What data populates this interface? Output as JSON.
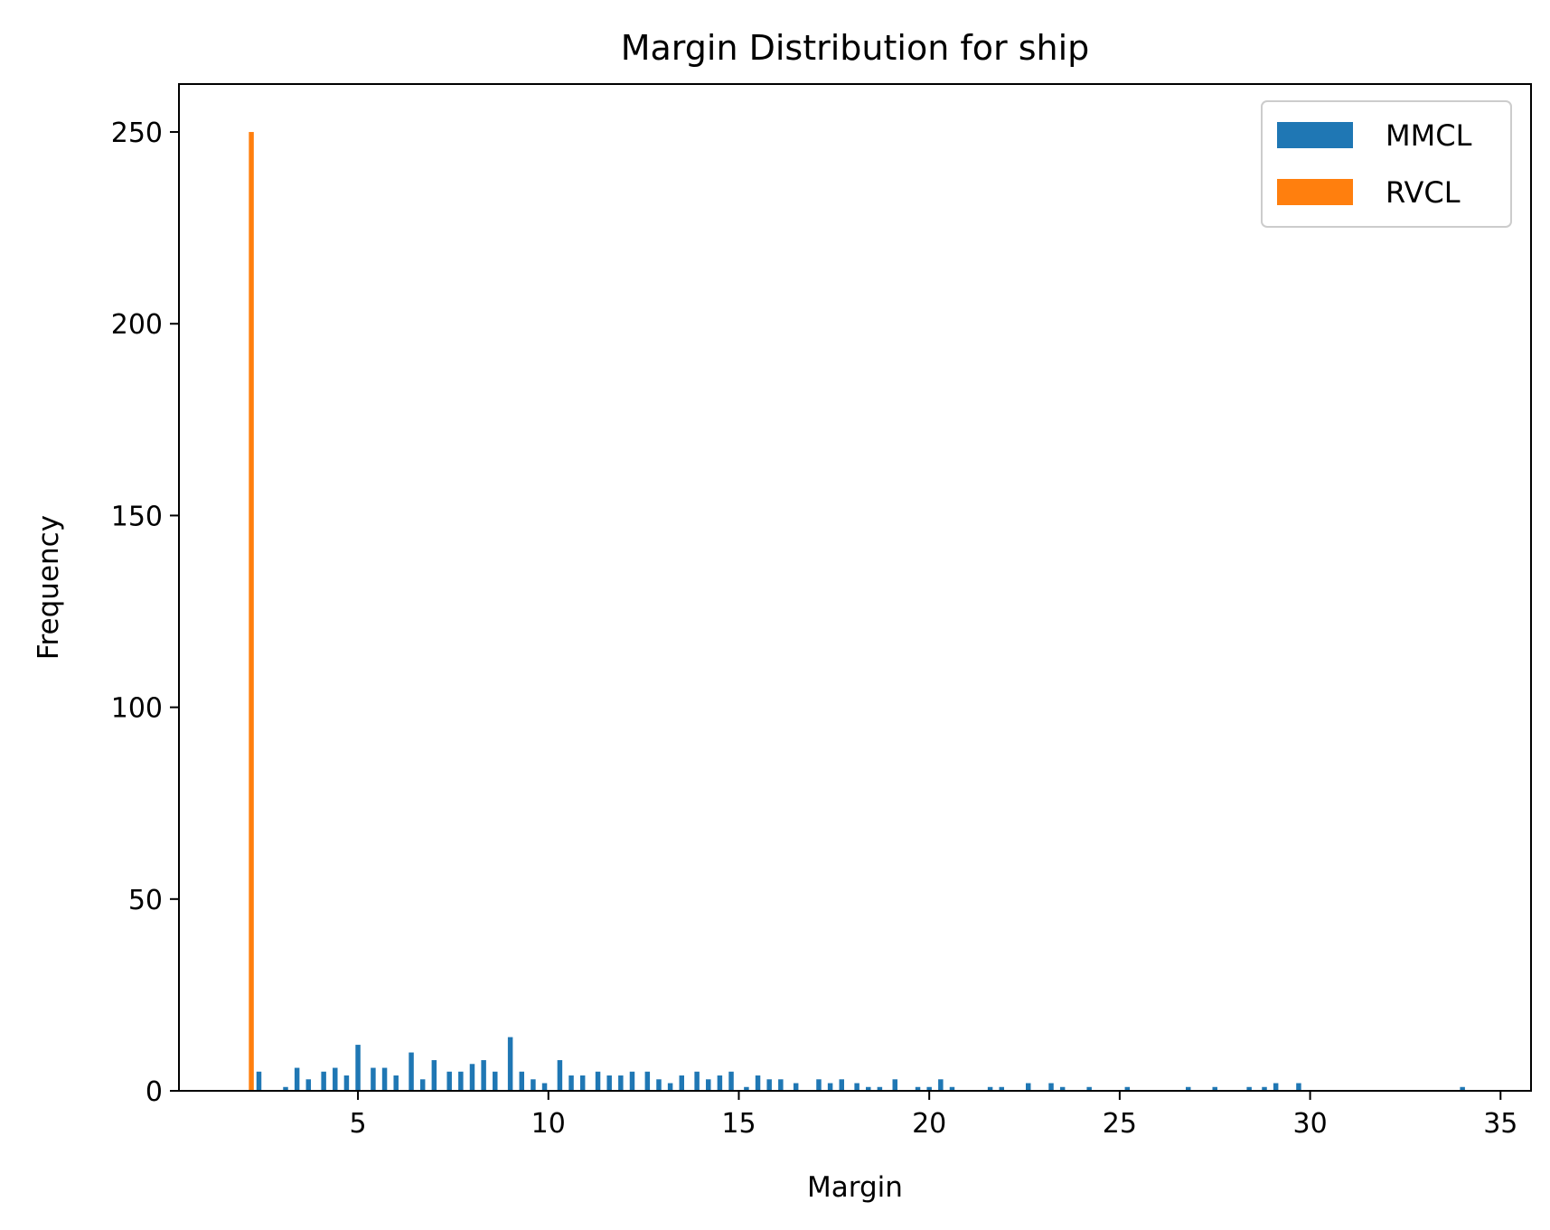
{
  "chart_data": {
    "type": "bar",
    "title": "Margin Distribution for ship",
    "xlabel": "Margin",
    "ylabel": "Frequency",
    "xlim": [
      0.3,
      35.8
    ],
    "ylim": [
      0,
      262.5
    ],
    "xticks": [
      5,
      10,
      15,
      20,
      25,
      30,
      35
    ],
    "yticks": [
      0,
      50,
      100,
      150,
      200,
      250
    ],
    "grid": false,
    "legend_position": "top-right",
    "bar_width": 0.13,
    "series": [
      {
        "name": "MMCL",
        "color": "#1f77b4",
        "x": [
          2.4,
          3.1,
          3.4,
          3.7,
          4.1,
          4.4,
          4.7,
          5.0,
          5.4,
          5.7,
          6.0,
          6.4,
          6.7,
          7.0,
          7.4,
          7.7,
          8.0,
          8.3,
          8.6,
          9.0,
          9.3,
          9.6,
          9.9,
          10.3,
          10.6,
          10.9,
          11.3,
          11.6,
          11.9,
          12.2,
          12.6,
          12.9,
          13.2,
          13.5,
          13.9,
          14.2,
          14.5,
          14.8,
          15.2,
          15.5,
          15.8,
          16.1,
          16.5,
          17.1,
          17.4,
          17.7,
          18.1,
          18.4,
          18.7,
          19.1,
          19.7,
          20.0,
          20.3,
          20.6,
          21.6,
          21.9,
          22.6,
          23.2,
          23.5,
          24.2,
          25.2,
          26.8,
          27.5,
          28.4,
          28.8,
          29.1,
          29.7,
          34.0
        ],
        "values": [
          5,
          1,
          6,
          3,
          5,
          6,
          4,
          12,
          6,
          6,
          4,
          10,
          3,
          8,
          5,
          5,
          7,
          8,
          5,
          14,
          5,
          3,
          2,
          8,
          4,
          4,
          5,
          4,
          4,
          5,
          5,
          3,
          2,
          4,
          5,
          3,
          4,
          5,
          1,
          4,
          3,
          3,
          2,
          3,
          2,
          3,
          2,
          1,
          1,
          3,
          1,
          1,
          3,
          1,
          1,
          1,
          2,
          2,
          1,
          1,
          1,
          1,
          1,
          1,
          1,
          2,
          2,
          1
        ]
      },
      {
        "name": "RVCL",
        "color": "#ff7f0e",
        "x": [
          2.2
        ],
        "values": [
          250
        ]
      }
    ]
  }
}
